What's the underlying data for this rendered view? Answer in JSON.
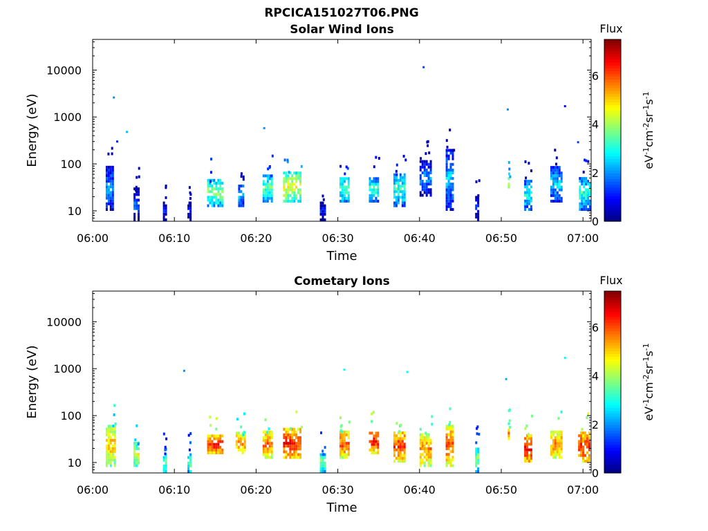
{
  "figure": {
    "title": "RPCICA151027T06.PNG"
  },
  "chart_data": [
    {
      "type": "heatmap",
      "title": "Solar Wind Ions",
      "xlabel": "Time",
      "ylabel": "Energy (eV)",
      "x_ticks": [
        "06:00",
        "06:10",
        "06:20",
        "06:30",
        "06:40",
        "06:50",
        "07:00"
      ],
      "xlim_minutes": [
        0,
        61
      ],
      "y_scale": "log",
      "y_ticks": [
        10,
        100,
        1000,
        10000
      ],
      "y_tick_labels": [
        "10",
        "100",
        "1000",
        "10000"
      ],
      "ylim": [
        6,
        45000
      ],
      "colorbar": {
        "title": "Flux",
        "label": "eV-1cm-2sr-1s-1",
        "range": [
          0,
          7.5
        ],
        "ticks": [
          0,
          2,
          4,
          6
        ],
        "colormap": "jet"
      },
      "blobs": [
        {
          "t": [
            1.6,
            2.6
          ],
          "e": [
            10,
            80
          ],
          "flux": 2.2
        },
        {
          "t": [
            5.0,
            5.6
          ],
          "e": [
            6,
            28
          ],
          "flux": 1.8
        },
        {
          "t": [
            8.6,
            8.9
          ],
          "e": [
            6,
            15
          ],
          "flux": 1.0
        },
        {
          "t": [
            11.6,
            11.9
          ],
          "e": [
            6,
            15
          ],
          "flux": 1.2
        },
        {
          "t": [
            14.0,
            15.8
          ],
          "e": [
            12,
            45
          ],
          "flux": 3.8
        },
        {
          "t": [
            17.8,
            18.4
          ],
          "e": [
            12,
            35
          ],
          "flux": 2.6
        },
        {
          "t": [
            20.8,
            22.0
          ],
          "e": [
            15,
            55
          ],
          "flux": 3.5
        },
        {
          "t": [
            23.3,
            25.5
          ],
          "e": [
            15,
            60
          ],
          "flux": 4.6
        },
        {
          "t": [
            27.8,
            28.4
          ],
          "e": [
            6,
            15
          ],
          "flux": 1.2
        },
        {
          "t": [
            30.2,
            31.3
          ],
          "e": [
            15,
            50
          ],
          "flux": 3.5
        },
        {
          "t": [
            33.8,
            35.0
          ],
          "e": [
            15,
            50
          ],
          "flux": 3.2
        },
        {
          "t": [
            36.8,
            38.3
          ],
          "e": [
            12,
            60
          ],
          "flux": 3.2
        },
        {
          "t": [
            40.0,
            41.4
          ],
          "e": [
            20,
            120
          ],
          "flux": 2.0
        },
        {
          "t": [
            43.2,
            44.2
          ],
          "e": [
            10,
            200
          ],
          "flux": 2.4
        },
        {
          "t": [
            46.8,
            47.2
          ],
          "e": [
            6,
            20
          ],
          "flux": 1.3
        },
        {
          "t": [
            50.8,
            51.0
          ],
          "e": [
            30,
            50
          ],
          "flux": 4.8
        },
        {
          "t": [
            52.8,
            53.6
          ],
          "e": [
            10,
            40
          ],
          "flux": 3.0
        },
        {
          "t": [
            56.0,
            57.4
          ],
          "e": [
            15,
            80
          ],
          "flux": 2.6
        },
        {
          "t": [
            59.5,
            60.8
          ],
          "e": [
            10,
            50
          ],
          "flux": 3.2
        }
      ],
      "isolated_points": [
        {
          "t": 2.6,
          "e": 2600,
          "flux": 2.0
        },
        {
          "t": 3.0,
          "e": 300,
          "flux": 1.2
        },
        {
          "t": 4.2,
          "e": 480,
          "flux": 2.3
        },
        {
          "t": 21.0,
          "e": 580,
          "flux": 2.0
        },
        {
          "t": 40.5,
          "e": 11500,
          "flux": 1.4
        },
        {
          "t": 50.8,
          "e": 1450,
          "flux": 2.0
        },
        {
          "t": 57.8,
          "e": 1700,
          "flux": 0.8
        },
        {
          "t": 59.4,
          "e": 290,
          "flux": 1.4
        }
      ]
    },
    {
      "type": "heatmap",
      "title": "Cometary Ions",
      "xlabel": "Time",
      "ylabel": "Energy (eV)",
      "x_ticks": [
        "06:00",
        "06:10",
        "06:20",
        "06:30",
        "06:40",
        "06:50",
        "07:00"
      ],
      "xlim_minutes": [
        0,
        61
      ],
      "y_scale": "log",
      "y_ticks": [
        10,
        100,
        1000,
        10000
      ],
      "y_tick_labels": [
        "10",
        "100",
        "1000",
        "10000"
      ],
      "ylim": [
        6,
        45000
      ],
      "colorbar": {
        "title": "Flux",
        "label": "eV-1cm-2sr-1s-1",
        "range": [
          0,
          7.5
        ],
        "ticks": [
          0,
          2,
          4,
          6
        ],
        "colormap": "jet"
      },
      "blobs": [
        {
          "t": [
            1.6,
            2.8
          ],
          "e": [
            8,
            60
          ],
          "flux": 5.2
        },
        {
          "t": [
            5.0,
            5.6
          ],
          "e": [
            8,
            25
          ],
          "flux": 4.6
        },
        {
          "t": [
            8.6,
            8.9
          ],
          "e": [
            6,
            15
          ],
          "flux": 3.8
        },
        {
          "t": [
            11.6,
            11.9
          ],
          "e": [
            6,
            15
          ],
          "flux": 3.8
        },
        {
          "t": [
            14.0,
            15.8
          ],
          "e": [
            15,
            35
          ],
          "flux": 6.4
        },
        {
          "t": [
            17.5,
            18.6
          ],
          "e": [
            15,
            40
          ],
          "flux": 5.6
        },
        {
          "t": [
            20.8,
            22.0
          ],
          "e": [
            12,
            45
          ],
          "flux": 5.8
        },
        {
          "t": [
            23.3,
            25.5
          ],
          "e": [
            12,
            50
          ],
          "flux": 6.4
        },
        {
          "t": [
            27.8,
            28.4
          ],
          "e": [
            6,
            15
          ],
          "flux": 3.8
        },
        {
          "t": [
            30.2,
            31.4
          ],
          "e": [
            12,
            45
          ],
          "flux": 6.0
        },
        {
          "t": [
            33.8,
            35.0
          ],
          "e": [
            15,
            45
          ],
          "flux": 6.4
        },
        {
          "t": [
            36.8,
            38.3
          ],
          "e": [
            10,
            45
          ],
          "flux": 6.2
        },
        {
          "t": [
            40.0,
            41.4
          ],
          "e": [
            8,
            40
          ],
          "flux": 5.6
        },
        {
          "t": [
            43.2,
            44.2
          ],
          "e": [
            8,
            60
          ],
          "flux": 6.0
        },
        {
          "t": [
            46.8,
            47.2
          ],
          "e": [
            6,
            20
          ],
          "flux": 3.8
        },
        {
          "t": [
            50.8,
            51.0
          ],
          "e": [
            30,
            50
          ],
          "flux": 5.8
        },
        {
          "t": [
            52.8,
            53.8
          ],
          "e": [
            10,
            35
          ],
          "flux": 6.6
        },
        {
          "t": [
            56.0,
            57.4
          ],
          "e": [
            12,
            45
          ],
          "flux": 5.8
        },
        {
          "t": [
            59.4,
            60.8
          ],
          "e": [
            10,
            40
          ],
          "flux": 6.4
        }
      ],
      "isolated_points": [
        {
          "t": 11.2,
          "e": 900,
          "flux": 2.0
        },
        {
          "t": 30.8,
          "e": 950,
          "flux": 2.8
        },
        {
          "t": 38.5,
          "e": 850,
          "flux": 2.8
        },
        {
          "t": 57.8,
          "e": 1700,
          "flux": 2.8
        },
        {
          "t": 50.6,
          "e": 600,
          "flux": 2.2
        }
      ]
    }
  ]
}
